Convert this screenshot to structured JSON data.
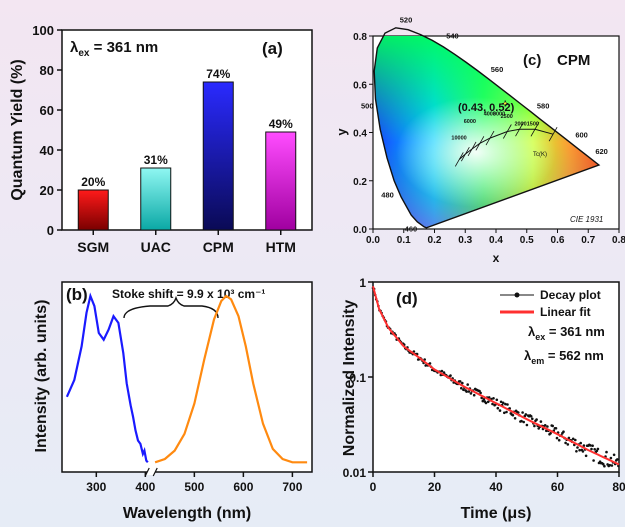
{
  "chart_data": [
    {
      "type": "bar",
      "panel": "(a)",
      "annotation": {
        "symbol": "λ",
        "sub": "ex",
        "text": " = 361 nm"
      },
      "categories": [
        "SGM",
        "UAC",
        "CPM",
        "HTM"
      ],
      "values": [
        20,
        31,
        74,
        49
      ],
      "value_labels": [
        "20%",
        "31%",
        "74%",
        "49%"
      ],
      "colors": [
        [
          "#ff1a1a",
          "#7a0000"
        ],
        [
          "#8ff7f2",
          "#0aa8a5"
        ],
        [
          "#2a2aff",
          "#0a0a55"
        ],
        [
          "#ff4cff",
          "#a000a0"
        ]
      ],
      "ylabel": "Quantum Yield (%)",
      "ylim": [
        0,
        100
      ],
      "yticks": [
        "0",
        "20",
        "40",
        "60",
        "80",
        "100"
      ]
    },
    {
      "type": "scatter",
      "panel": "(c)",
      "title": "CPM",
      "watermark": "CIE 1931",
      "xlabel": "x",
      "ylabel": "y",
      "xlim": [
        0.0,
        0.8
      ],
      "ylim": [
        0.0,
        0.8
      ],
      "xticks": [
        "0.0",
        "0.1",
        "0.2",
        "0.3",
        "0.4",
        "0.5",
        "0.6",
        "0.7",
        "0.8"
      ],
      "yticks": [
        "0.0",
        "0.2",
        "0.4",
        "0.6",
        "0.8"
      ],
      "point": {
        "x": 0.43,
        "y": 0.52,
        "label": "(0.43, 0.52)"
      },
      "wavelength_labels": [
        "460",
        "480",
        "500",
        "520",
        "540",
        "560",
        "580",
        "600",
        "620"
      ],
      "planckian_labels": [
        "10000",
        "6000",
        "4000",
        "3000",
        "2500",
        "2000",
        "1500"
      ],
      "tc_label": "Tc(K)"
    },
    {
      "type": "line",
      "panel": "(b)",
      "annotation": "Stoke shift = 9.9 x 10³ cm⁻¹",
      "xlabel": "Wavelength (nm)",
      "ylabel": "Intensity (arb. units)",
      "xlim": [
        230,
        740
      ],
      "xticks": [
        "300",
        "400",
        "500",
        "600",
        "700"
      ],
      "series": [
        {
          "color": "#1a1aff",
          "x": [
            240,
            255,
            270,
            280,
            288,
            296,
            305,
            315,
            325,
            335,
            345,
            355,
            362,
            370,
            375,
            380,
            385,
            390,
            395,
            398,
            402,
            405
          ],
          "values": [
            0.4,
            0.5,
            0.7,
            0.9,
            1.0,
            0.94,
            0.78,
            0.74,
            0.8,
            0.88,
            0.84,
            0.66,
            0.48,
            0.35,
            0.28,
            0.2,
            0.14,
            0.12,
            0.06,
            0.08,
            0.02,
            0.01
          ]
        },
        {
          "color": "#ff8a10",
          "x": [
            420,
            440,
            460,
            480,
            500,
            520,
            540,
            555,
            565,
            575,
            590,
            605,
            620,
            640,
            660,
            680,
            700,
            730
          ],
          "values": [
            0.01,
            0.03,
            0.08,
            0.18,
            0.36,
            0.62,
            0.86,
            0.97,
            1.0,
            0.98,
            0.88,
            0.7,
            0.48,
            0.24,
            0.09,
            0.03,
            0.01,
            0.01
          ]
        }
      ]
    },
    {
      "type": "line",
      "panel": "(d)",
      "xlabel": "Time (μs)",
      "ylabel": "Normalized Intensity",
      "xlim": [
        0,
        80
      ],
      "ylim_log": [
        0.01,
        1
      ],
      "xticks": [
        "0",
        "20",
        "40",
        "60",
        "80"
      ],
      "yticks": [
        "0.01",
        "0.1",
        "1"
      ],
      "series": [
        {
          "name": "Decay plot",
          "color": "#111111",
          "x": [
            0,
            2,
            5,
            10,
            15,
            20,
            30,
            40,
            50,
            60,
            70,
            80
          ],
          "values": [
            0.9,
            0.52,
            0.33,
            0.21,
            0.16,
            0.12,
            0.078,
            0.053,
            0.036,
            0.025,
            0.017,
            0.012
          ]
        },
        {
          "name": "Linear fit",
          "color": "#ff3030",
          "x": [
            0,
            2,
            5,
            10,
            15,
            20,
            30,
            40,
            50,
            60,
            70,
            80
          ],
          "values": [
            0.9,
            0.52,
            0.33,
            0.21,
            0.16,
            0.12,
            0.078,
            0.053,
            0.036,
            0.025,
            0.017,
            0.012
          ]
        }
      ],
      "annotations": [
        {
          "symbol": "λ",
          "sub": "ex",
          "text": " = 361 nm"
        },
        {
          "symbol": "λ",
          "sub": "em",
          "text": " = 562 nm"
        }
      ]
    }
  ]
}
